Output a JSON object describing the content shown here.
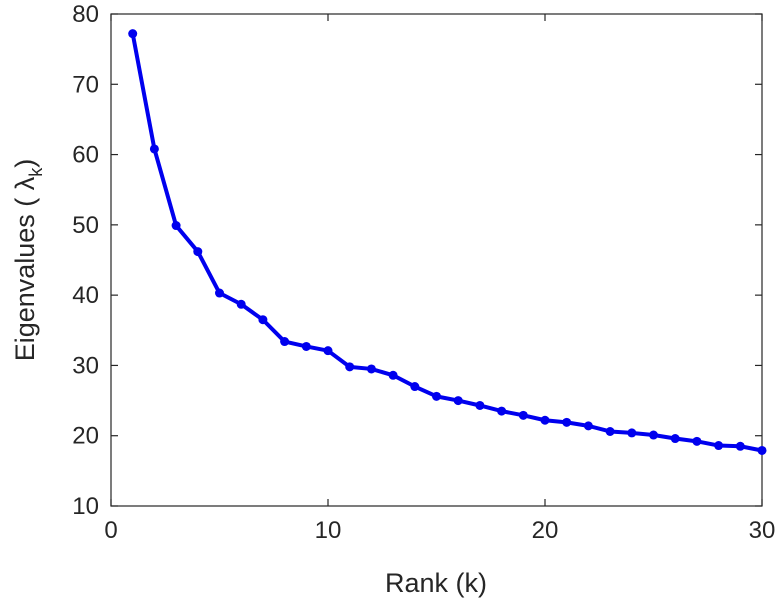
{
  "chart_data": {
    "type": "line",
    "title": "",
    "xlabel": "Rank (k)",
    "ylabel": "Eigenvalues (  λ",
    "ylabel_subscript": "k",
    "ylabel_close": ")",
    "xlim": [
      0,
      30
    ],
    "ylim": [
      10,
      80
    ],
    "xticks": [
      0,
      10,
      20,
      30
    ],
    "yticks": [
      10,
      20,
      30,
      40,
      50,
      60,
      70,
      80
    ],
    "grid": false,
    "box": true,
    "series_color": "#0000ee",
    "x": [
      1,
      2,
      3,
      4,
      5,
      6,
      7,
      8,
      9,
      10,
      11,
      12,
      13,
      14,
      15,
      16,
      17,
      18,
      19,
      20,
      21,
      22,
      23,
      24,
      25,
      26,
      27,
      28,
      29,
      30
    ],
    "series": [
      {
        "values": [
          77.2,
          60.8,
          49.9,
          46.2,
          40.3,
          38.7,
          36.5,
          33.4,
          32.7,
          32.1,
          29.8,
          29.5,
          28.6,
          27.0,
          25.6,
          25.0,
          24.3,
          23.5,
          22.9,
          22.2,
          21.9,
          21.4,
          20.6,
          20.4,
          20.1,
          19.6,
          19.2,
          18.6,
          18.5,
          17.9
        ]
      }
    ]
  }
}
